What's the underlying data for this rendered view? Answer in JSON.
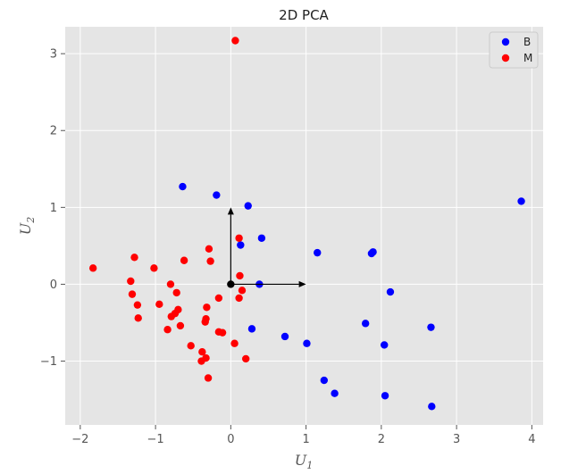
{
  "chart_data": {
    "type": "scatter",
    "title": "2D PCA",
    "xlabel_main": "U",
    "xlabel_sub": "1",
    "ylabel_main": "U",
    "ylabel_sub": "2",
    "xlim": [
      -2.2,
      4.15
    ],
    "ylim": [
      -1.83,
      3.35
    ],
    "xticks": [
      -2,
      -1,
      0,
      1,
      2,
      3,
      4
    ],
    "yticks": [
      -1,
      0,
      1,
      2,
      3
    ],
    "grid": true,
    "legend_position": "top-right",
    "colors": {
      "B": "#0000ff",
      "M": "#ff0000",
      "background": "#e5e5e5",
      "grid": "#ffffff",
      "arrow": "#000000"
    },
    "series": [
      {
        "name": "B",
        "color": "#0000ff",
        "points": [
          [
            -0.64,
            1.27
          ],
          [
            -0.19,
            1.16
          ],
          [
            0.23,
            1.02
          ],
          [
            0.13,
            0.51
          ],
          [
            0.41,
            0.6
          ],
          [
            0.38,
            0.0
          ],
          [
            1.15,
            0.41
          ],
          [
            1.87,
            0.4
          ],
          [
            1.89,
            0.42
          ],
          [
            2.12,
            -0.1
          ],
          [
            3.86,
            1.08
          ],
          [
            0.28,
            -0.58
          ],
          [
            0.72,
            -0.68
          ],
          [
            1.01,
            -0.77
          ],
          [
            1.79,
            -0.51
          ],
          [
            2.04,
            -0.79
          ],
          [
            2.66,
            -0.56
          ],
          [
            1.24,
            -1.25
          ],
          [
            1.38,
            -1.42
          ],
          [
            2.05,
            -1.45
          ],
          [
            2.67,
            -1.59
          ]
        ]
      },
      {
        "name": "M",
        "color": "#ff0000",
        "points": [
          [
            0.06,
            3.17
          ],
          [
            -1.83,
            0.21
          ],
          [
            -1.28,
            0.35
          ],
          [
            -1.02,
            0.21
          ],
          [
            -0.62,
            0.31
          ],
          [
            -0.29,
            0.46
          ],
          [
            -0.27,
            0.3
          ],
          [
            0.11,
            0.6
          ],
          [
            0.12,
            0.11
          ],
          [
            -1.33,
            0.04
          ],
          [
            -1.31,
            -0.13
          ],
          [
            -1.24,
            -0.27
          ],
          [
            -1.23,
            -0.44
          ],
          [
            -0.95,
            -0.26
          ],
          [
            -0.8,
            0.0
          ],
          [
            -0.72,
            -0.11
          ],
          [
            -0.7,
            -0.33
          ],
          [
            -0.74,
            -0.38
          ],
          [
            -0.79,
            -0.42
          ],
          [
            -0.84,
            -0.59
          ],
          [
            -0.67,
            -0.54
          ],
          [
            -0.32,
            -0.3
          ],
          [
            -0.33,
            -0.45
          ],
          [
            -0.34,
            -0.49
          ],
          [
            -0.16,
            -0.18
          ],
          [
            0.15,
            -0.08
          ],
          [
            0.11,
            -0.18
          ],
          [
            -0.16,
            -0.62
          ],
          [
            -0.11,
            -0.63
          ],
          [
            0.05,
            -0.77
          ],
          [
            -0.53,
            -0.8
          ],
          [
            -0.38,
            -0.88
          ],
          [
            -0.33,
            -0.96
          ],
          [
            -0.39,
            -1.0
          ],
          [
            0.2,
            -0.97
          ],
          [
            -0.3,
            -1.22
          ]
        ]
      }
    ],
    "origin_point": [
      0,
      0
    ],
    "arrows": [
      {
        "from": [
          0,
          0
        ],
        "to": [
          1.0,
          0.0
        ]
      },
      {
        "from": [
          0,
          0
        ],
        "to": [
          0.0,
          1.0
        ]
      }
    ]
  }
}
